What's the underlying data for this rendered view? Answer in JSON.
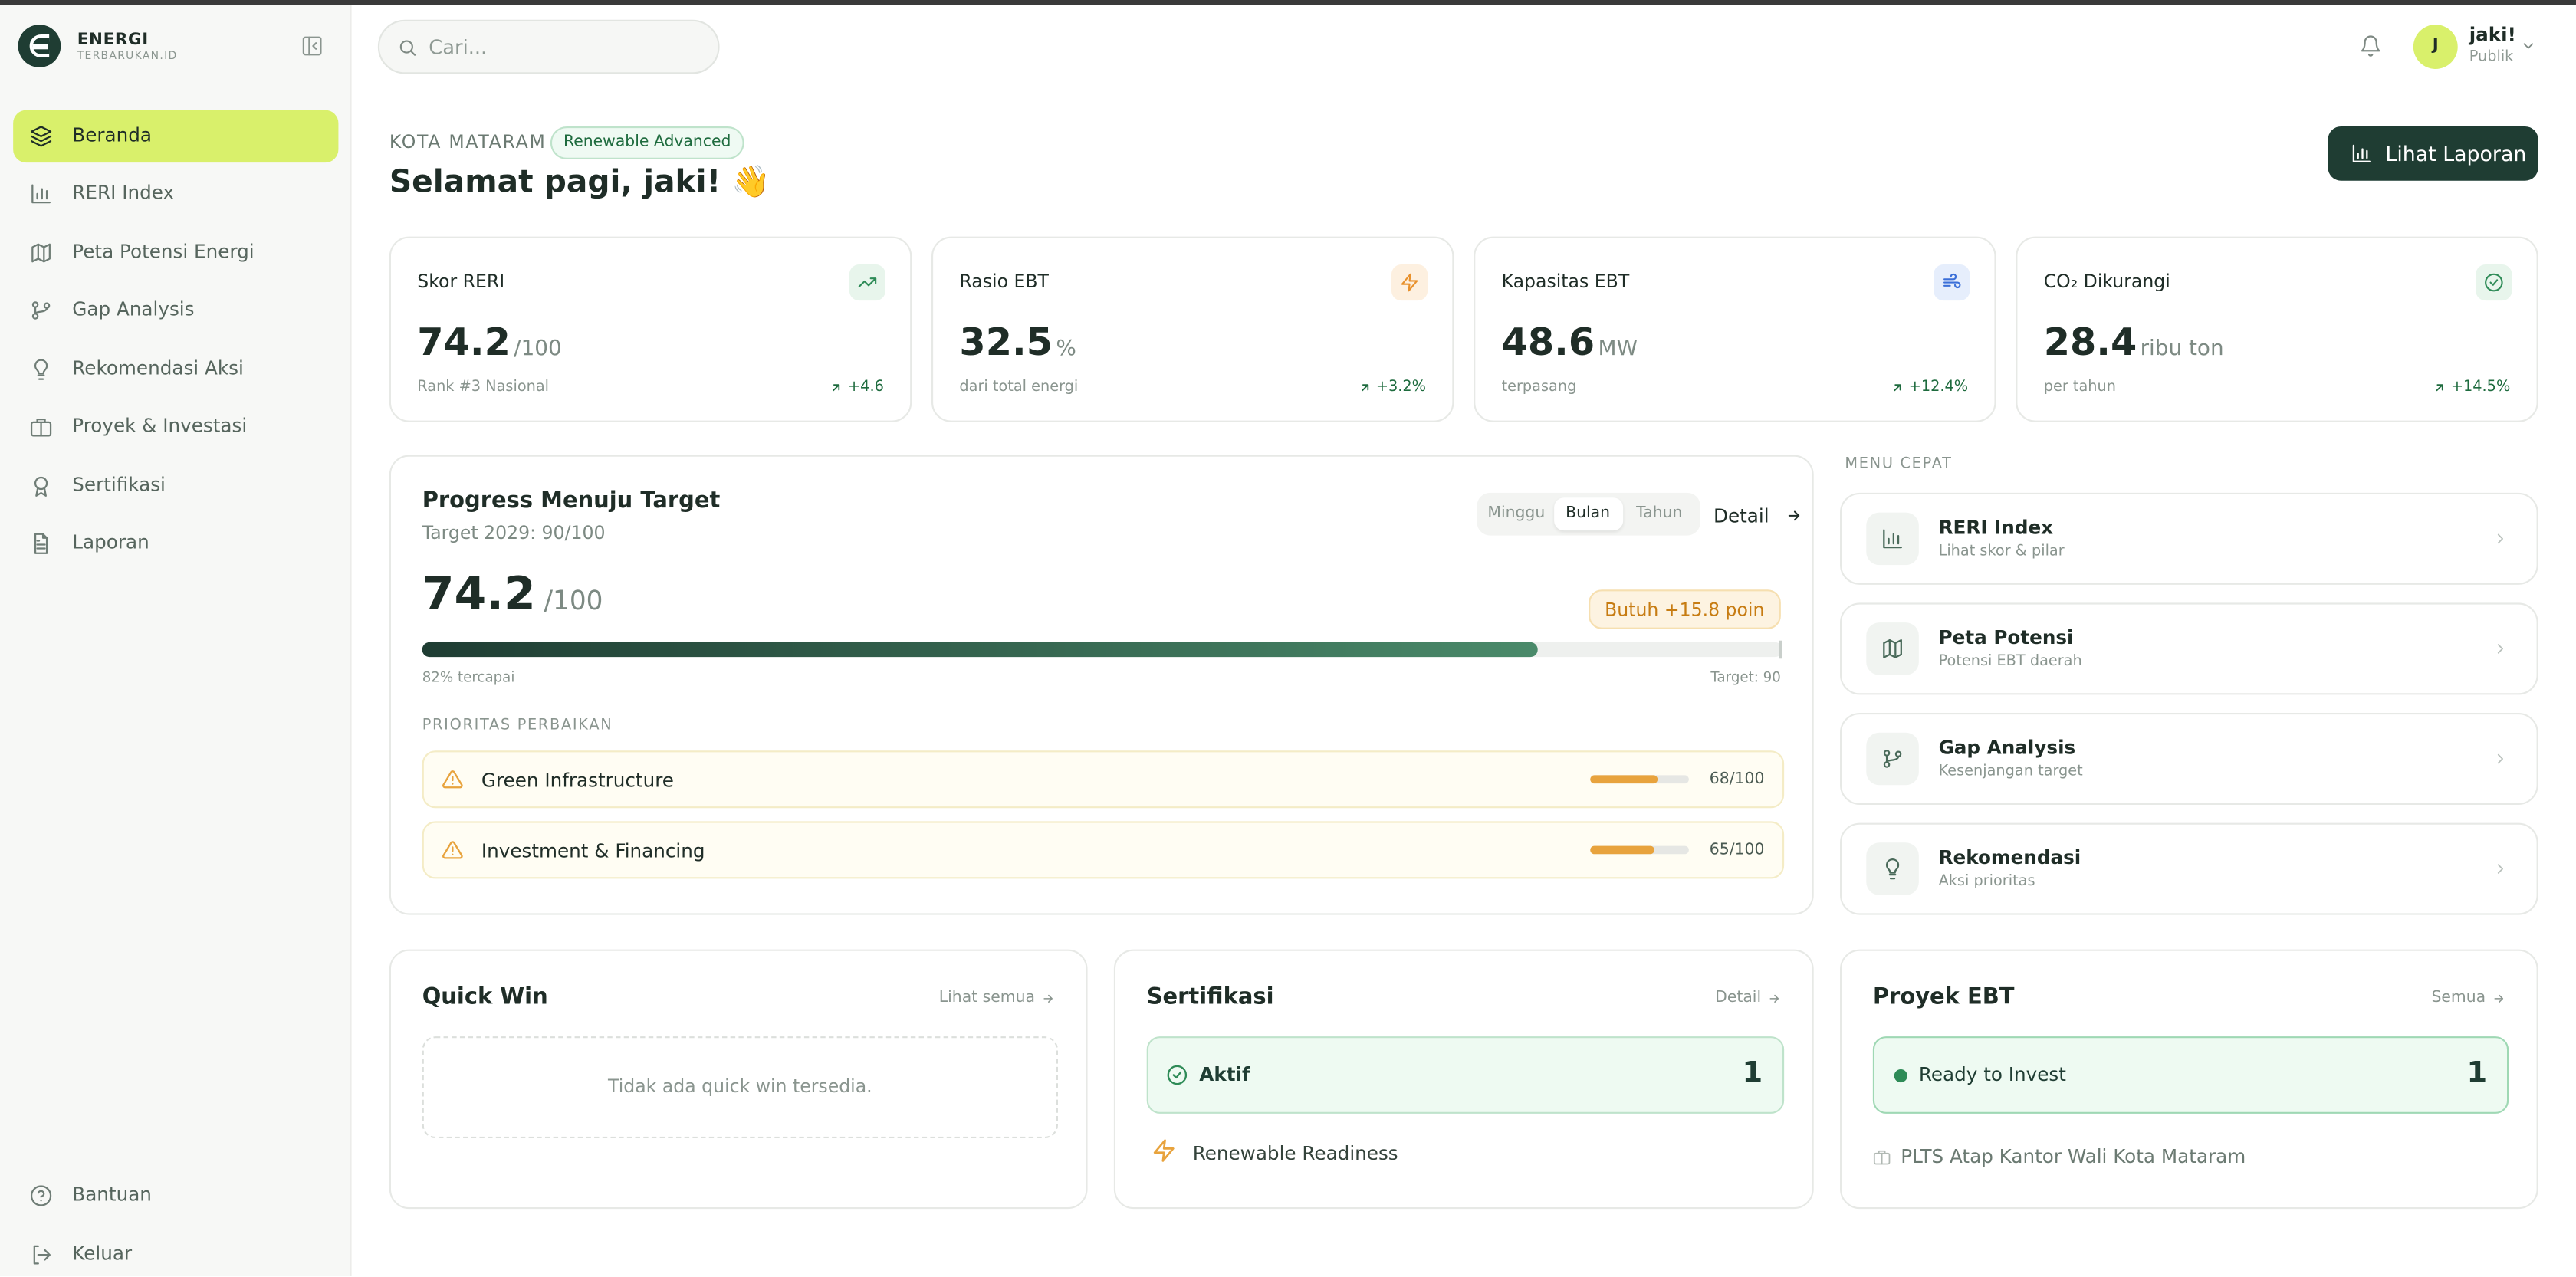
{
  "brand": {
    "name": "ENERGI",
    "tagline": "TERBARUKAN.ID"
  },
  "search_placeholder": "Cari...",
  "user": {
    "initial": "J",
    "name": "jaki!",
    "role": "Publik"
  },
  "nav": {
    "active": 0,
    "items": [
      "Beranda",
      "RERI Index",
      "Peta Potensi Energi",
      "Gap Analysis",
      "Rekomendasi Aksi",
      "Proyek & Investasi",
      "Sertifikasi",
      "Laporan"
    ],
    "footer": [
      "Bantuan",
      "Keluar"
    ]
  },
  "header": {
    "city": "KOTA MATARAM",
    "badge": "Renewable Advanced",
    "greeting": "Selamat pagi, jaki! 👋",
    "button": "Lihat Laporan"
  },
  "stats": [
    {
      "title": "Skor RERI",
      "value": 74.2,
      "unit": "/100",
      "note": "Rank #3 Nasional",
      "delta": "+4.6"
    },
    {
      "title": "Rasio EBT",
      "value": 32.5,
      "unit": "%",
      "note": "dari total energi",
      "delta": "+3.2%"
    },
    {
      "title": "Kapasitas EBT",
      "value": 48.6,
      "unit": "MW",
      "note": "terpasang",
      "delta": "+12.4%"
    },
    {
      "title": "CO₂ Dikurangi",
      "value": 28.4,
      "unit": "ribu ton",
      "note": "per tahun",
      "delta": "+14.5%"
    }
  ],
  "progress": {
    "title": "Progress Menuju Target",
    "subtitle": "Target 2029: 90/100",
    "tabs": [
      "Minggu",
      "Bulan",
      "Tahun"
    ],
    "active_tab": 1,
    "detail": "Detail",
    "score": 74.2,
    "unit": "/100",
    "need": "Butuh +15.8 poin",
    "achieved": {
      "value": 82,
      "label": "82% tercapai"
    },
    "target_label": "Target: 90"
  },
  "priorities": {
    "title": "PRIORITAS PERBAIKAN",
    "items": [
      {
        "name": "Green Infrastructure",
        "score": 68,
        "score_label": "68/100"
      },
      {
        "name": "Investment & Financing",
        "score": 65,
        "score_label": "65/100"
      }
    ]
  },
  "quick_menu": {
    "title": "MENU CEPAT",
    "items": [
      {
        "title": "RERI Index",
        "subtitle": "Lihat skor & pilar"
      },
      {
        "title": "Peta Potensi",
        "subtitle": "Potensi EBT daerah"
      },
      {
        "title": "Gap Analysis",
        "subtitle": "Kesenjangan target"
      },
      {
        "title": "Rekomendasi",
        "subtitle": "Aksi prioritas"
      }
    ]
  },
  "quick_win": {
    "title": "Quick Win",
    "link": "Lihat semua",
    "empty": "Tidak ada quick win tersedia."
  },
  "certification": {
    "title": "Sertifikasi",
    "link": "Detail",
    "status": "Aktif",
    "count": 1,
    "item": "Renewable Readiness"
  },
  "projects": {
    "title": "Proyek EBT",
    "link": "Semua",
    "status": "Ready to Invest",
    "count": 1,
    "item": "PLTS Atap Kantor Wali Kota Mataram"
  }
}
